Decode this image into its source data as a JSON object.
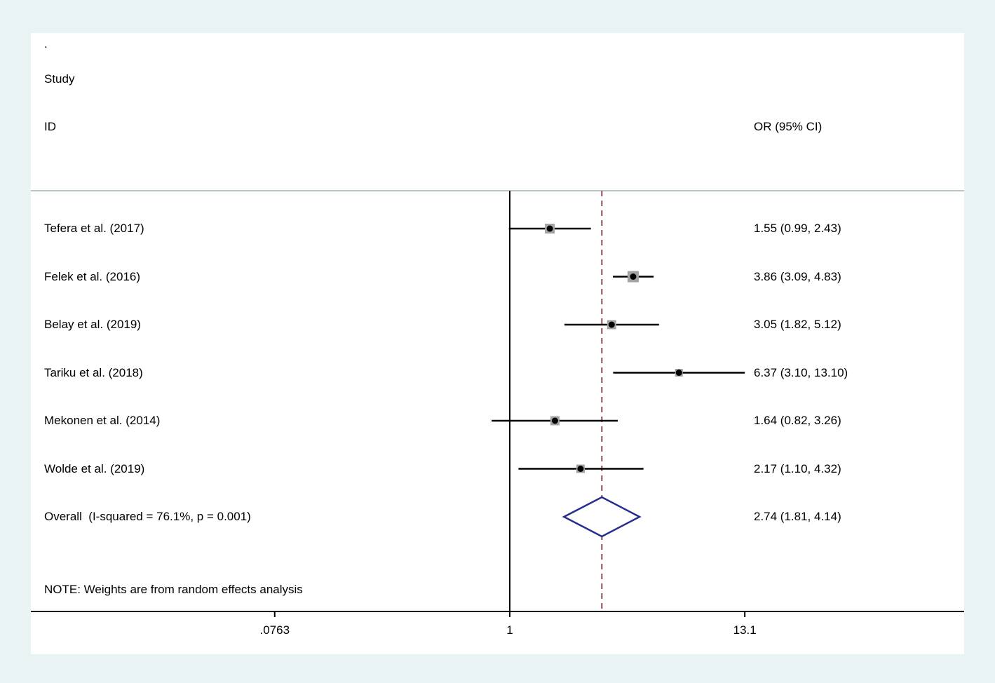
{
  "page": {
    "background": "#e9f3f3",
    "plot_background": "#ffffff"
  },
  "corner_mark": ".",
  "header": {
    "study_label": "Study",
    "id_label": "ID",
    "or_label": "OR (95% CI)"
  },
  "note": "NOTE: Weights are from random effects analysis",
  "colors": {
    "text": "#000000",
    "separator_line": "#b4c4ca",
    "null_line": "#000000",
    "overall_dashed_line": "#95494d",
    "ci_line": "#000000",
    "point_marker": "#000000",
    "weight_box": "#a3a3a3",
    "diamond": "#252e8c",
    "axis": "#000000"
  },
  "chart_data": {
    "type": "forest",
    "title": "",
    "x_scale": "log",
    "x_tick_values": [
      0.0763,
      1,
      13.1
    ],
    "x_tick_labels": [
      ".0763",
      "1",
      "13.1"
    ],
    "null_line_x": 1,
    "overall_dashed_x": 2.74,
    "studies": [
      {
        "id": "Tefera et al. (2017)",
        "or": 1.55,
        "ci_low": 0.99,
        "ci_high": 2.43,
        "or_text": "1.55 (0.99, 2.43)",
        "box_size": 14
      },
      {
        "id": "Felek et al. (2016)",
        "or": 3.86,
        "ci_low": 3.09,
        "ci_high": 4.83,
        "or_text": "3.86 (3.09, 4.83)",
        "box_size": 16
      },
      {
        "id": "Belay et al. (2019)",
        "or": 3.05,
        "ci_low": 1.82,
        "ci_high": 5.12,
        "or_text": "3.05 (1.82, 5.12)",
        "box_size": 13
      },
      {
        "id": "Tariku et al. (2018)",
        "or": 6.37,
        "ci_low": 3.1,
        "ci_high": 13.1,
        "or_text": "6.37 (3.10, 13.10)",
        "box_size": 11
      },
      {
        "id": "Mekonen et al. (2014)",
        "or": 1.64,
        "ci_low": 0.82,
        "ci_high": 3.26,
        "or_text": "1.64 (0.82, 3.26)",
        "box_size": 13
      },
      {
        "id": "Wolde et al. (2019)",
        "or": 2.17,
        "ci_low": 1.1,
        "ci_high": 4.32,
        "or_text": "2.17 (1.10, 4.32)",
        "box_size": 12
      }
    ],
    "overall": {
      "id": "Overall  (I-squared = 76.1%, p = 0.001)",
      "or": 2.74,
      "ci_low": 1.81,
      "ci_high": 4.14,
      "or_text": "2.74 (1.81, 4.14)"
    }
  }
}
